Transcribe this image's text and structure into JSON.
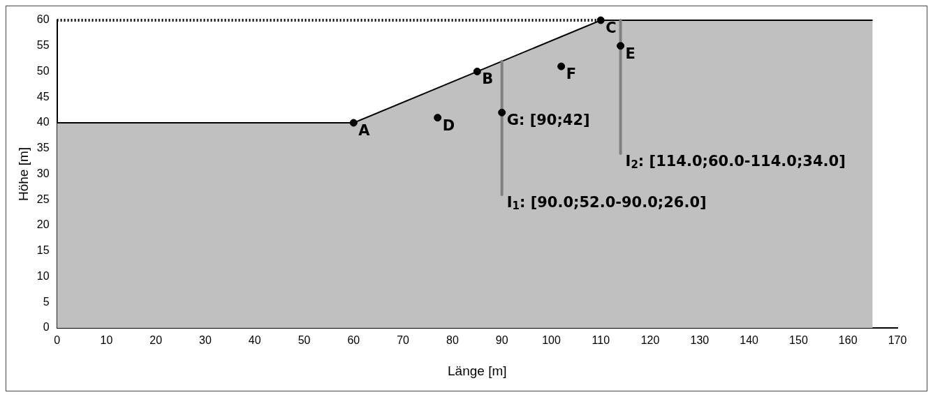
{
  "chart_data": {
    "type": "scatter",
    "xlabel": "Länge [m]",
    "ylabel": "Höhe [m]",
    "xlim": [
      0,
      170
    ],
    "xticks": [
      0,
      10,
      20,
      30,
      40,
      50,
      60,
      70,
      80,
      90,
      100,
      110,
      120,
      130,
      140,
      150,
      160,
      170
    ],
    "ylim": [
      0,
      60
    ],
    "yticks": [
      0,
      5,
      10,
      15,
      20,
      25,
      30,
      35,
      40,
      45,
      50,
      55,
      60
    ],
    "grid": false,
    "legend": false,
    "series": [
      {
        "type": "area",
        "color": "#c0c0c0",
        "x": [
          0,
          60,
          110,
          165
        ],
        "values": [
          40,
          40,
          60,
          60
        ]
      },
      {
        "type": "line",
        "color": "#000000",
        "line_style": "dotted",
        "x": [
          0,
          110
        ],
        "values": [
          60,
          60
        ]
      },
      {
        "type": "line",
        "color": "#808080",
        "x": [
          90,
          90
        ],
        "values": [
          52,
          26
        ]
      },
      {
        "type": "line",
        "color": "#808080",
        "x": [
          114,
          114
        ],
        "values": [
          60,
          34
        ]
      },
      {
        "marker": "circle",
        "color": "#000000",
        "x": [
          60,
          85,
          110,
          77,
          114,
          102,
          90
        ],
        "values": [
          40,
          50,
          60,
          41,
          55,
          51,
          42
        ]
      }
    ],
    "annotations": [
      {
        "text": "A",
        "x": 60,
        "y": 40
      },
      {
        "text": "B",
        "x": 85,
        "y": 50
      },
      {
        "text": "C",
        "x": 110,
        "y": 60
      },
      {
        "text": "D",
        "x": 77,
        "y": 41
      },
      {
        "text": "E",
        "x": 114,
        "y": 55
      },
      {
        "text": "F",
        "x": 102,
        "y": 51
      },
      {
        "text": "G: [90;42]",
        "x": 90,
        "y": 42
      },
      {
        "text": "I$_{1}$: [90.0;52.0-90.0;26.0]",
        "x": 90,
        "y": 26
      },
      {
        "text": "I$_{2}$: [114.0;60.0-114.0;34.0]",
        "x": 114,
        "y": 34
      }
    ]
  }
}
